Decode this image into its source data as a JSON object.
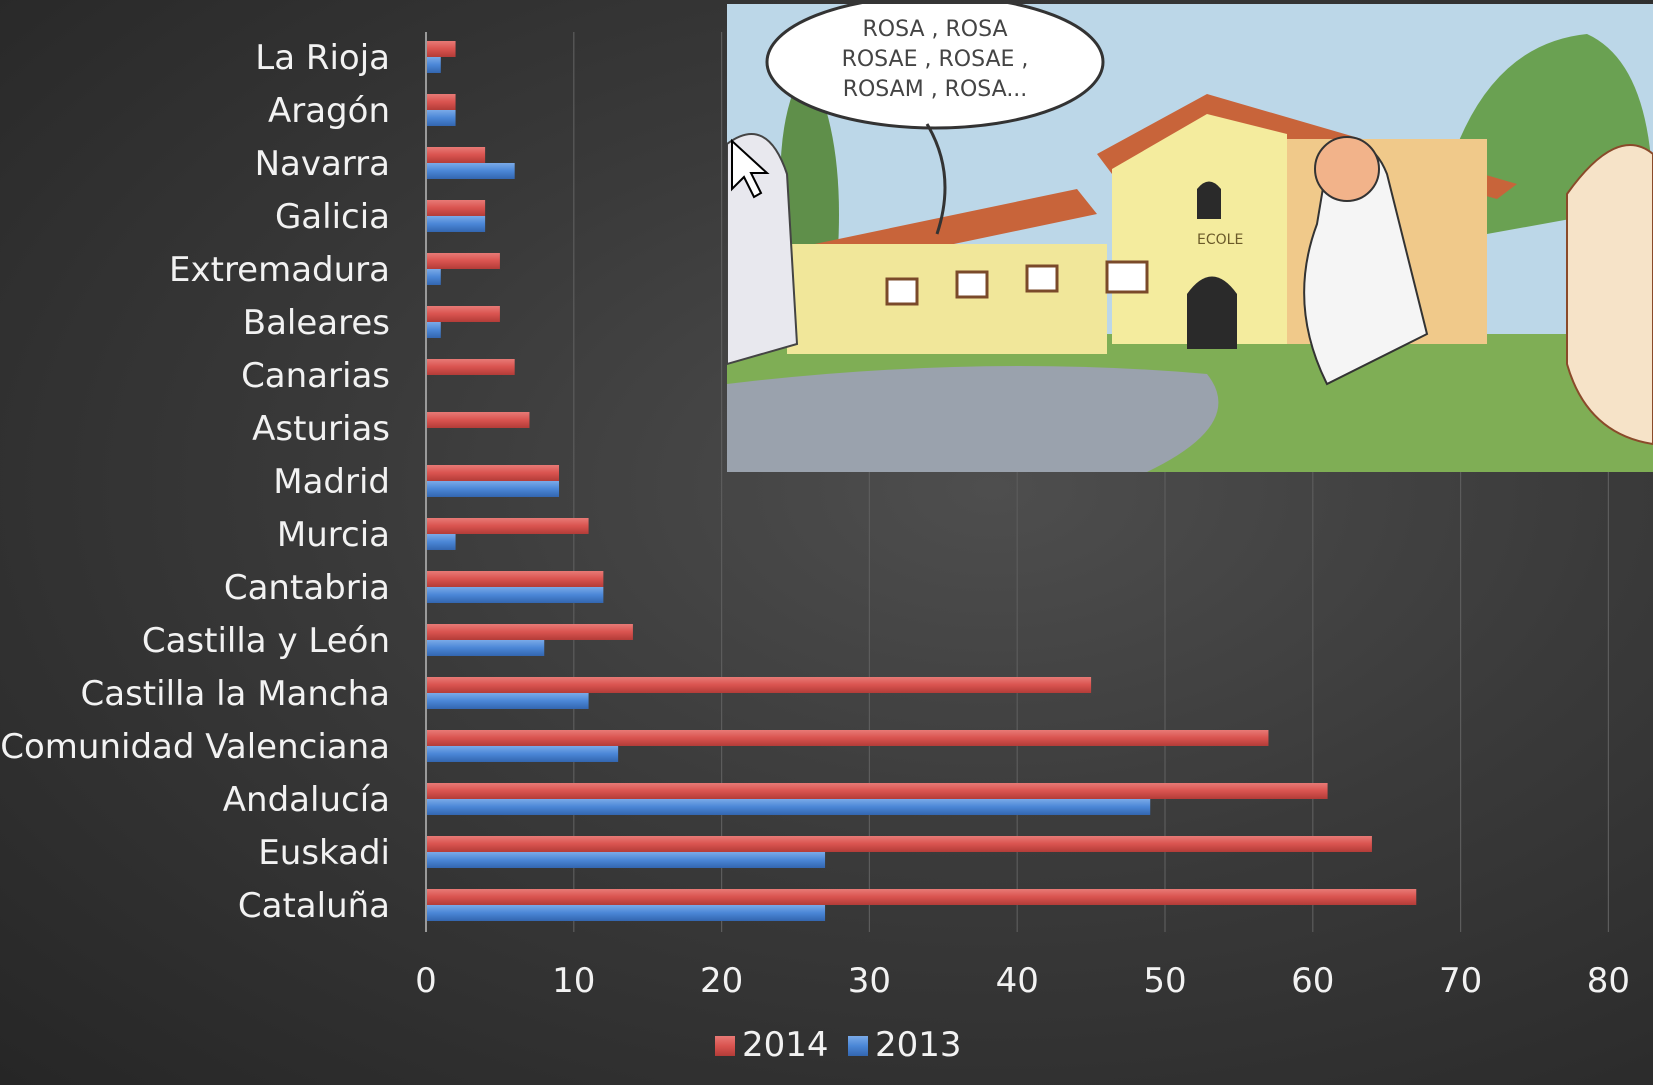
{
  "chart_data": {
    "type": "bar",
    "orientation": "horizontal",
    "categories": [
      "La Rioja",
      "Aragón",
      "Navarra",
      "Galicia",
      "Extremadura",
      "Baleares",
      "Canarias",
      "Asturias",
      "Madrid",
      "Murcia",
      "Cantabria",
      "Castilla y León",
      "Castilla la Mancha",
      "Comunidad Valenciana",
      "Andalucía",
      "Euskadi",
      "Cataluña"
    ],
    "series": [
      {
        "name": "2014",
        "color": "#d9534f",
        "values": [
          2,
          2,
          4,
          4,
          5,
          5,
          6,
          7,
          9,
          11,
          12,
          14,
          45,
          57,
          61,
          64,
          67
        ]
      },
      {
        "name": "2013",
        "color": "#4a86d6",
        "values": [
          1,
          2,
          6,
          4,
          1,
          1,
          0,
          0,
          9,
          2,
          12,
          8,
          11,
          13,
          49,
          27,
          27
        ]
      }
    ],
    "xlim": [
      0,
      80
    ],
    "xticks": [
      "0",
      "10",
      "20",
      "30",
      "40",
      "50",
      "60",
      "70",
      "80"
    ],
    "grid": "vertical",
    "legend_position": "bottom",
    "legend": [
      "2014",
      "2013"
    ]
  },
  "overlay_image": {
    "speech_bubble": [
      "ROSA , ROSA",
      "ROSAE , ROSAE ,",
      "ROSAM , ROSA..."
    ],
    "sign_text": "ECOLE",
    "icon": "cursor-arrow-icon"
  }
}
